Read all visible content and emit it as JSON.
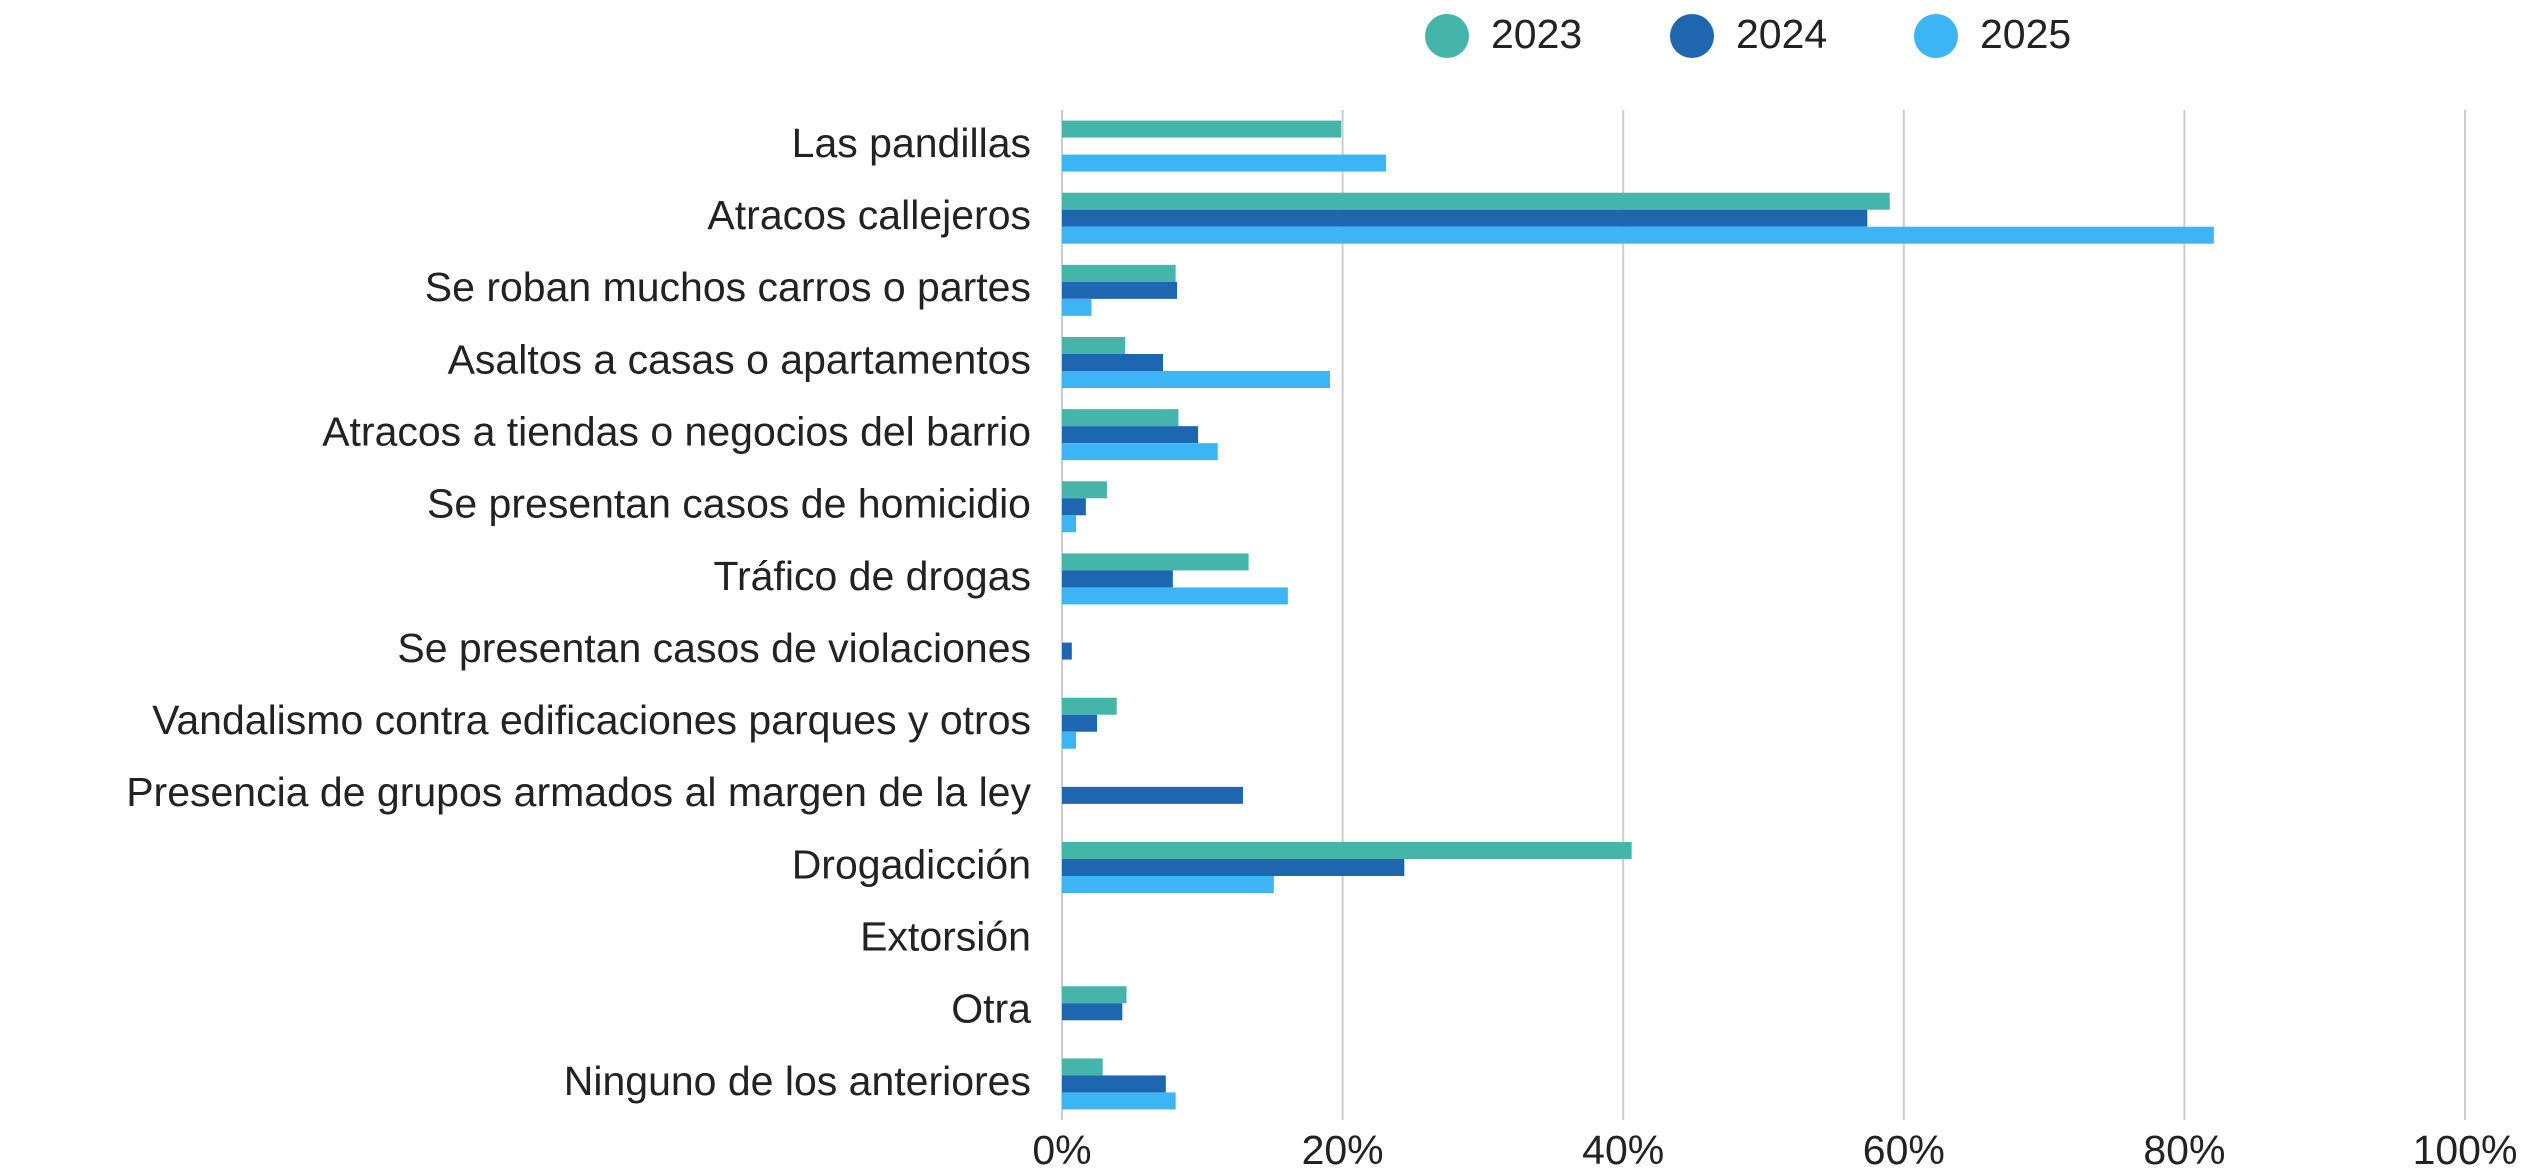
{
  "chart_data": {
    "type": "bar",
    "orientation": "horizontal",
    "categories": [
      "Las pandillas",
      "Atracos callejeros",
      "Se roban muchos carros o partes",
      "Asaltos a casas o apartamentos",
      "Atracos a tiendas o negocios del barrio",
      "Se presentan casos de homicidio",
      "Tráfico de drogas",
      "Se presentan casos de violaciones",
      "Vandalismo contra edificaciones parques y otros",
      "Presencia de grupos armados al margen de la ley",
      "Drogadicción",
      "Extorsión",
      "Otra",
      "Ninguno de los anteriores"
    ],
    "series": [
      {
        "name": "2023",
        "color": "#45b5aa",
        "values": [
          19.9,
          59.0,
          8.1,
          4.5,
          8.3,
          3.2,
          13.3,
          0,
          3.9,
          0,
          40.6,
          0,
          4.6,
          2.9
        ]
      },
      {
        "name": "2024",
        "color": "#1f66b0",
        "values": [
          0,
          57.4,
          8.2,
          7.2,
          9.7,
          1.7,
          7.9,
          0.7,
          2.5,
          12.9,
          24.4,
          0,
          4.3,
          7.4
        ]
      },
      {
        "name": "2025",
        "color": "#3db5f5",
        "values": [
          23.1,
          82.1,
          2.1,
          19.1,
          11.1,
          1.0,
          16.1,
          0,
          1.0,
          0,
          15.1,
          0,
          0,
          8.1
        ]
      }
    ],
    "xlim": [
      0,
      100
    ],
    "xticks": [
      {
        "value": 0,
        "label": "0%"
      },
      {
        "value": 20,
        "label": "20%"
      },
      {
        "value": 40,
        "label": "40%"
      },
      {
        "value": 60,
        "label": "60%"
      },
      {
        "value": 80,
        "label": "80%"
      },
      {
        "value": 100,
        "label": "100%"
      }
    ],
    "grid": true,
    "legend": "top"
  }
}
